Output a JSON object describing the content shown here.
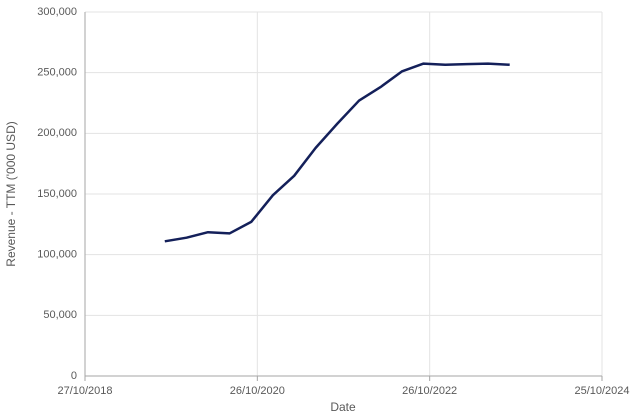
{
  "chart_data": {
    "type": "line",
    "x_label": "Date",
    "y_label": "Revenue - TTM ('000 USD)",
    "x": [
      "30/09/2019",
      "31/12/2019",
      "31/03/2020",
      "30/06/2020",
      "30/09/2020",
      "31/12/2020",
      "31/03/2021",
      "30/06/2021",
      "30/09/2021",
      "31/12/2021",
      "31/03/2022",
      "30/06/2022",
      "30/09/2022",
      "31/12/2022",
      "31/03/2023",
      "30/06/2023",
      "30/09/2023"
    ],
    "series": [
      {
        "name": "Revenue - TTM",
        "color": "#14205a",
        "values": [
          111000,
          114000,
          118500,
          117500,
          127000,
          149000,
          165000,
          188000,
          208000,
          227000,
          238000,
          251000,
          257500,
          256500,
          257000,
          257500,
          256500
        ]
      }
    ],
    "xlim": [
      "27/10/2018",
      "25/10/2024"
    ],
    "xticks": [
      "27/10/2018",
      "26/10/2020",
      "26/10/2022",
      "25/10/2024"
    ],
    "ylim": [
      0,
      300000
    ],
    "yticks": [
      0,
      {
        "value": 50000,
        "label": "50,000"
      },
      {
        "value": 100000,
        "label": "100,000"
      },
      {
        "value": 150000,
        "label": "150,000"
      },
      {
        "value": 200000,
        "label": "200,000"
      },
      {
        "value": 250000,
        "label": "250,000"
      },
      {
        "value": 300000,
        "label": "300,000"
      }
    ],
    "grid": true
  }
}
